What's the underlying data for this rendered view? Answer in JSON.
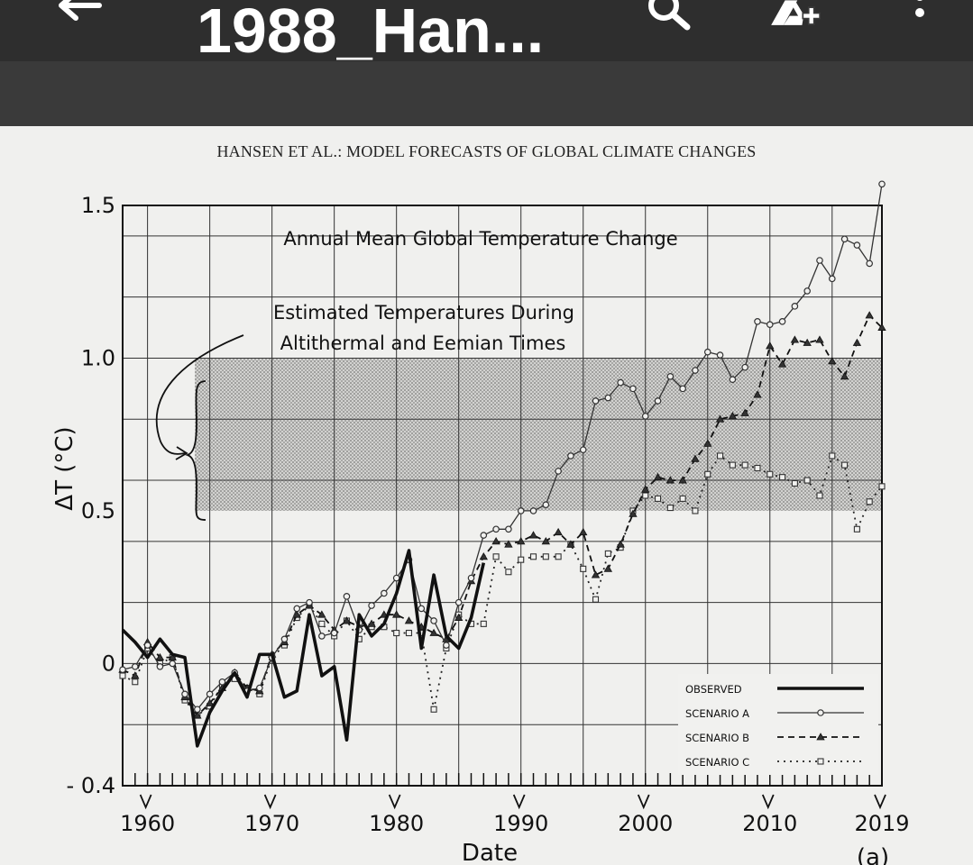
{
  "app_bar": {
    "title": "1988_Han...",
    "icons": [
      "back-arrow-icon",
      "search-icon",
      "add-to-drive-icon",
      "more-vert-icon"
    ]
  },
  "document": {
    "running_header": "HANSEN ET AL.: MODEL FORECASTS OF GLOBAL CLIMATE CHANGES"
  },
  "chart_data": {
    "type": "line",
    "title": "Annual Mean Global Temperature Change",
    "annotation": [
      "Estimated Temperatures During",
      "Altithermal and Eemian Times"
    ],
    "xlabel": "Date",
    "ylabel": "ΔT (°C)",
    "panel_label": "(a)",
    "xlim": [
      1958,
      2019
    ],
    "ylim": [
      -0.4,
      1.5
    ],
    "x_ticks": [
      1960,
      1970,
      1980,
      1990,
      2000,
      2010,
      2019
    ],
    "y_ticks": [
      {
        "value": 1.5,
        "label": "1.5"
      },
      {
        "value": 1.0,
        "label": "1.0"
      },
      {
        "value": 0.5,
        "label": "0.5"
      },
      {
        "value": 0,
        "label": "0"
      },
      {
        "value": -0.4,
        "label": "- 0.4"
      }
    ],
    "shaded_band": [
      0.5,
      1.0
    ],
    "grid": true,
    "legend_position": "bottom-right",
    "series": [
      {
        "name": "OBSERVED",
        "x": [
          1958,
          1959,
          1960,
          1961,
          1962,
          1963,
          1964,
          1965,
          1966,
          1967,
          1968,
          1969,
          1970,
          1971,
          1972,
          1973,
          1974,
          1975,
          1976,
          1977,
          1978,
          1979,
          1980,
          1981,
          1982,
          1983,
          1984,
          1985,
          1986,
          1987
        ],
        "y": [
          0.11,
          0.07,
          0.02,
          0.08,
          0.03,
          0.02,
          -0.27,
          -0.16,
          -0.09,
          -0.03,
          -0.11,
          0.03,
          0.03,
          -0.11,
          -0.09,
          0.16,
          -0.04,
          -0.01,
          -0.25,
          0.16,
          0.09,
          0.13,
          0.23,
          0.37,
          0.05,
          0.29,
          0.09,
          0.05,
          0.15,
          0.33
        ]
      },
      {
        "name": "SCENARIO A",
        "x": [
          1958,
          1959,
          1960,
          1961,
          1962,
          1963,
          1964,
          1965,
          1966,
          1967,
          1968,
          1969,
          1970,
          1971,
          1972,
          1973,
          1974,
          1975,
          1976,
          1977,
          1978,
          1979,
          1980,
          1981,
          1982,
          1983,
          1984,
          1985,
          1986,
          1987,
          1988,
          1989,
          1990,
          1991,
          1992,
          1993,
          1994,
          1995,
          1996,
          1997,
          1998,
          1999,
          2000,
          2001,
          2002,
          2003,
          2004,
          2005,
          2006,
          2007,
          2008,
          2009,
          2010,
          2011,
          2012,
          2013,
          2014,
          2015,
          2016,
          2017,
          2018,
          2019
        ],
        "y": [
          -0.02,
          -0.01,
          0.06,
          -0.01,
          0.0,
          -0.1,
          -0.15,
          -0.1,
          -0.06,
          -0.03,
          -0.09,
          -0.08,
          0.02,
          0.08,
          0.18,
          0.2,
          0.09,
          0.1,
          0.22,
          0.11,
          0.19,
          0.23,
          0.28,
          0.34,
          0.18,
          0.14,
          0.06,
          0.2,
          0.28,
          0.42,
          0.44,
          0.44,
          0.5,
          0.5,
          0.52,
          0.63,
          0.68,
          0.7,
          0.86,
          0.87,
          0.92,
          0.9,
          0.81,
          0.86,
          0.94,
          0.9,
          0.96,
          1.02,
          1.01,
          0.93,
          0.97,
          1.12,
          1.11,
          1.12,
          1.17,
          1.22,
          1.32,
          1.26,
          1.39,
          1.37,
          1.31,
          1.57
        ]
      },
      {
        "name": "SCENARIO B",
        "x": [
          1958,
          1959,
          1960,
          1961,
          1962,
          1963,
          1964,
          1965,
          1966,
          1967,
          1968,
          1969,
          1970,
          1971,
          1972,
          1973,
          1974,
          1975,
          1976,
          1977,
          1978,
          1979,
          1980,
          1981,
          1982,
          1983,
          1984,
          1985,
          1986,
          1987,
          1988,
          1989,
          1990,
          1991,
          1992,
          1993,
          1994,
          1995,
          1996,
          1997,
          1998,
          1999,
          2000,
          2001,
          2002,
          2003,
          2004,
          2005,
          2006,
          2007,
          2008,
          2009,
          2010,
          2011,
          2012,
          2013,
          2014,
          2015,
          2016,
          2017,
          2018,
          2019
        ],
        "y": [
          -0.02,
          -0.04,
          0.07,
          0.02,
          0.02,
          -0.11,
          -0.17,
          -0.13,
          -0.08,
          -0.03,
          -0.08,
          -0.09,
          0.03,
          0.07,
          0.16,
          0.19,
          0.16,
          0.11,
          0.14,
          0.12,
          0.13,
          0.16,
          0.16,
          0.14,
          0.12,
          0.1,
          0.08,
          0.15,
          0.27,
          0.35,
          0.4,
          0.39,
          0.4,
          0.42,
          0.4,
          0.43,
          0.39,
          0.43,
          0.29,
          0.31,
          0.39,
          0.49,
          0.57,
          0.61,
          0.6,
          0.6,
          0.67,
          0.72,
          0.8,
          0.81,
          0.82,
          0.88,
          1.04,
          0.98,
          1.06,
          1.05,
          1.06,
          0.99,
          0.94,
          1.05,
          1.14,
          1.1
        ]
      },
      {
        "name": "SCENARIO C",
        "x": [
          1958,
          1959,
          1960,
          1961,
          1962,
          1963,
          1964,
          1965,
          1966,
          1967,
          1968,
          1969,
          1970,
          1971,
          1972,
          1973,
          1974,
          1975,
          1976,
          1977,
          1978,
          1979,
          1980,
          1981,
          1982,
          1983,
          1984,
          1985,
          1986,
          1987,
          1988,
          1989,
          1990,
          1991,
          1992,
          1993,
          1994,
          1995,
          1996,
          1997,
          1998,
          1999,
          2000,
          2001,
          2002,
          2003,
          2004,
          2005,
          2006,
          2007,
          2008,
          2009,
          2010,
          2011,
          2012,
          2013,
          2014,
          2015,
          2016,
          2017,
          2018,
          2019
        ],
        "y": [
          -0.04,
          -0.06,
          0.05,
          0.0,
          0.02,
          -0.12,
          -0.17,
          -0.14,
          -0.07,
          -0.05,
          -0.08,
          -0.1,
          0.02,
          0.06,
          0.15,
          0.19,
          0.13,
          0.09,
          0.14,
          0.08,
          0.12,
          0.12,
          0.1,
          0.1,
          0.1,
          -0.15,
          0.05,
          0.16,
          0.13,
          0.13,
          0.35,
          0.3,
          0.34,
          0.35,
          0.35,
          0.35,
          0.39,
          0.31,
          0.21,
          0.36,
          0.38,
          0.5,
          0.55,
          0.54,
          0.51,
          0.54,
          0.5,
          0.62,
          0.68,
          0.65,
          0.65,
          0.64,
          0.62,
          0.61,
          0.59,
          0.6,
          0.55,
          0.68,
          0.65,
          0.44,
          0.53,
          0.58
        ]
      }
    ]
  }
}
